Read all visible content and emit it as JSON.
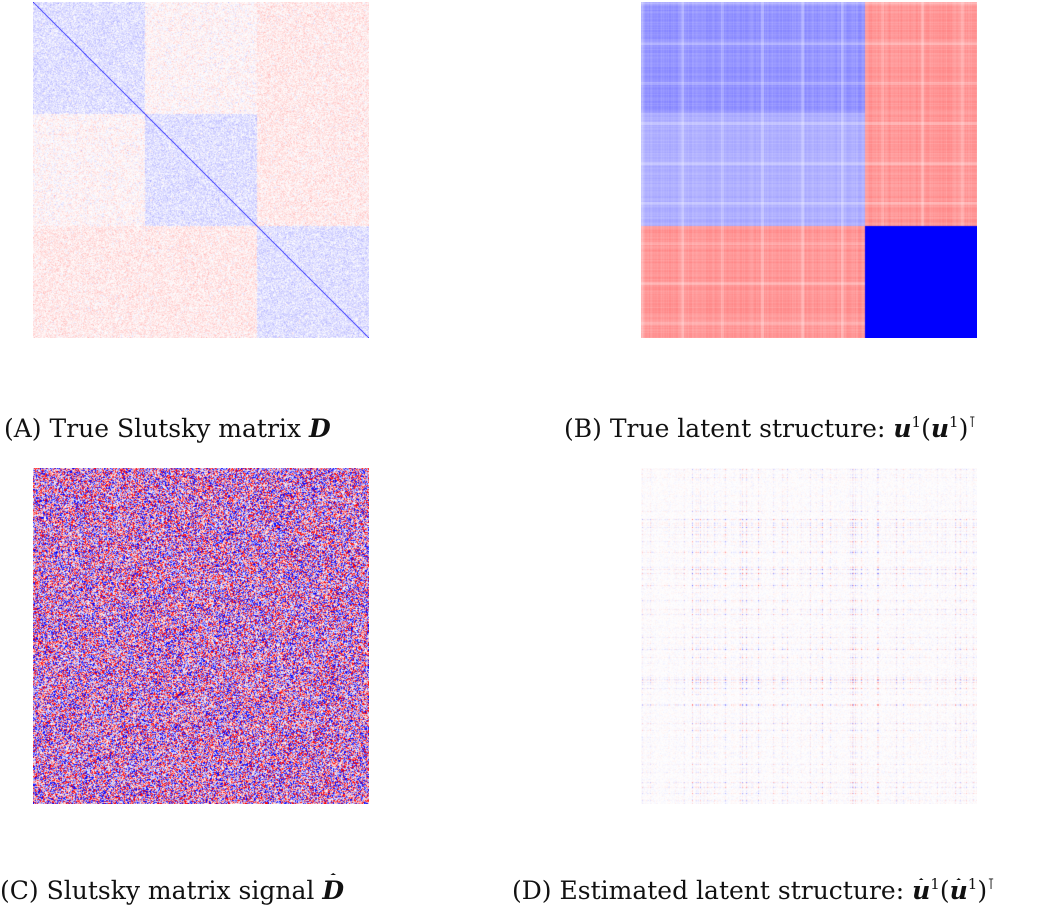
{
  "figure": {
    "panels": [
      {
        "id": "a",
        "label": "(A)",
        "title": "True Slutsky matrix",
        "symbol": "D",
        "pattern": "block-diagonal-noise"
      },
      {
        "id": "b",
        "label": "(B)",
        "title": "True latent structure:",
        "symbol": "u",
        "pattern": "rank-one-blocks"
      },
      {
        "id": "c",
        "label": "(C)",
        "title": "Slutsky matrix signal",
        "symbol": "D",
        "pattern": "noise"
      },
      {
        "id": "d",
        "label": "(D)",
        "title": "Estimated latent structure:",
        "symbol": "u",
        "pattern": "estimated-rank-one"
      }
    ],
    "colors": {
      "positive": "#ff0000",
      "negative": "#0000ff",
      "neutral": "#ffffff"
    }
  }
}
